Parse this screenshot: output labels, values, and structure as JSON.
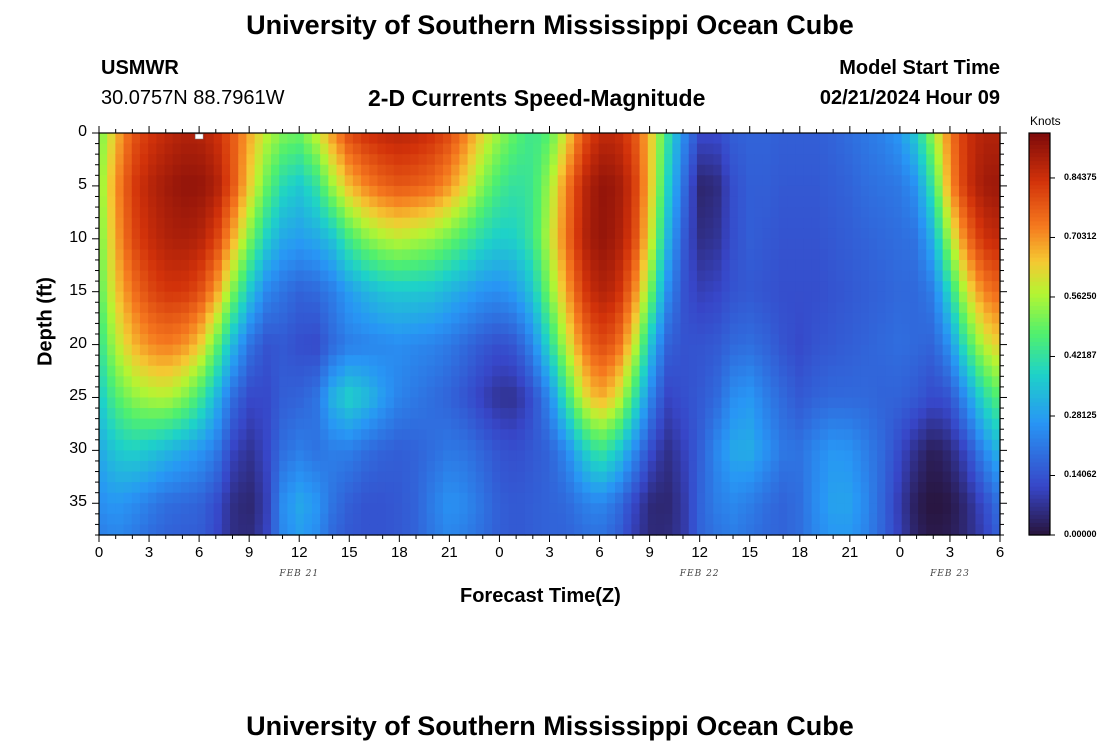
{
  "page": {
    "title": "University of Southern Mississippi Ocean Cube",
    "footer_title": "University of Southern Mississippi Ocean Cube",
    "station_id": "USMWR",
    "station_coords": "30.0757N  88.7961W",
    "subtitle": "2-D Currents Speed-Magnitude",
    "model_start_label": "Model Start Time",
    "model_start_value": "02/21/2024 Hour 09"
  },
  "chart_data": {
    "type": "heatmap",
    "title": "2-D Currents Speed-Magnitude",
    "xlabel": "Forecast Time(Z)",
    "ylabel": "Depth (ft)",
    "x_tick_labels": [
      "0",
      "3",
      "6",
      "9",
      "12",
      "15",
      "18",
      "21",
      "0",
      "3",
      "6",
      "9",
      "12",
      "15",
      "18",
      "21",
      "0",
      "3",
      "6"
    ],
    "x_hours": [
      0,
      3,
      6,
      9,
      12,
      15,
      18,
      21,
      24,
      27,
      30,
      33,
      36,
      39,
      42,
      45,
      48,
      51,
      54
    ],
    "date_labels": [
      {
        "label": "FEB 21",
        "hour": 12
      },
      {
        "label": "FEB 22",
        "hour": 36
      },
      {
        "label": "FEB 23",
        "hour": 51
      }
    ],
    "y_tick_labels": [
      "0",
      "5",
      "10",
      "15",
      "20",
      "25",
      "30",
      "35"
    ],
    "y_ticks": [
      0,
      5,
      10,
      15,
      20,
      25,
      30,
      35
    ],
    "xlim": [
      0,
      54
    ],
    "ylim": [
      0,
      38
    ],
    "colorbar": {
      "units": "Knots",
      "min": 0.0,
      "max": 0.95,
      "ticks": [
        0.0,
        0.14062,
        0.28125,
        0.42187,
        0.5625,
        0.70312,
        0.84375
      ],
      "tick_labels": [
        "0.00000",
        "0.14062",
        "0.28125",
        "0.42187",
        "0.56250",
        "0.70312",
        "0.84375"
      ]
    },
    "x_hours_sampled": [
      0,
      1,
      2,
      3,
      4,
      5,
      6,
      7,
      8,
      9,
      10,
      11,
      12,
      13,
      14,
      15,
      16,
      17,
      18,
      19,
      20,
      21,
      22,
      23,
      24,
      25,
      26,
      27,
      28,
      29,
      30,
      31,
      32,
      33,
      34,
      35,
      36,
      37,
      38,
      39,
      40,
      41,
      42,
      43,
      44,
      45,
      46,
      47,
      48,
      49,
      50,
      51,
      52,
      53,
      54
    ],
    "depths_sampled": [
      0,
      5,
      10,
      15,
      20,
      25,
      30,
      35,
      38
    ],
    "speed_knots": [
      [
        0.5,
        0.52,
        0.5,
        0.47,
        0.42,
        0.36,
        0.3,
        0.25,
        0.22
      ],
      [
        0.66,
        0.7,
        0.68,
        0.64,
        0.57,
        0.47,
        0.36,
        0.27,
        0.24
      ],
      [
        0.78,
        0.82,
        0.8,
        0.74,
        0.66,
        0.53,
        0.38,
        0.25,
        0.22
      ],
      [
        0.83,
        0.87,
        0.85,
        0.8,
        0.71,
        0.56,
        0.36,
        0.22,
        0.19
      ],
      [
        0.86,
        0.9,
        0.88,
        0.83,
        0.73,
        0.57,
        0.33,
        0.19,
        0.17
      ],
      [
        0.88,
        0.92,
        0.89,
        0.83,
        0.71,
        0.53,
        0.3,
        0.18,
        0.16
      ],
      [
        0.88,
        0.92,
        0.88,
        0.8,
        0.65,
        0.45,
        0.27,
        0.17,
        0.16
      ],
      [
        0.85,
        0.89,
        0.82,
        0.7,
        0.5,
        0.33,
        0.22,
        0.13,
        0.12
      ],
      [
        0.78,
        0.79,
        0.68,
        0.52,
        0.33,
        0.19,
        0.11,
        0.06,
        0.06
      ],
      [
        0.68,
        0.64,
        0.52,
        0.36,
        0.2,
        0.12,
        0.07,
        0.04,
        0.05
      ],
      [
        0.58,
        0.5,
        0.38,
        0.24,
        0.14,
        0.12,
        0.11,
        0.09,
        0.1
      ],
      [
        0.52,
        0.4,
        0.3,
        0.2,
        0.15,
        0.16,
        0.19,
        0.25,
        0.24
      ],
      [
        0.5,
        0.36,
        0.28,
        0.17,
        0.13,
        0.17,
        0.22,
        0.3,
        0.28
      ],
      [
        0.58,
        0.42,
        0.3,
        0.18,
        0.12,
        0.2,
        0.2,
        0.27,
        0.25
      ],
      [
        0.7,
        0.55,
        0.35,
        0.22,
        0.18,
        0.32,
        0.22,
        0.2,
        0.18
      ],
      [
        0.8,
        0.66,
        0.45,
        0.28,
        0.22,
        0.38,
        0.22,
        0.16,
        0.15
      ],
      [
        0.84,
        0.72,
        0.52,
        0.32,
        0.23,
        0.34,
        0.19,
        0.14,
        0.14
      ],
      [
        0.86,
        0.76,
        0.56,
        0.35,
        0.24,
        0.28,
        0.17,
        0.14,
        0.14
      ],
      [
        0.87,
        0.78,
        0.58,
        0.36,
        0.25,
        0.23,
        0.16,
        0.15,
        0.15
      ],
      [
        0.86,
        0.77,
        0.56,
        0.36,
        0.24,
        0.21,
        0.17,
        0.17,
        0.17
      ],
      [
        0.84,
        0.75,
        0.54,
        0.35,
        0.23,
        0.19,
        0.19,
        0.22,
        0.21
      ],
      [
        0.8,
        0.7,
        0.5,
        0.32,
        0.21,
        0.17,
        0.21,
        0.26,
        0.24
      ],
      [
        0.72,
        0.62,
        0.45,
        0.29,
        0.18,
        0.14,
        0.2,
        0.24,
        0.22
      ],
      [
        0.62,
        0.52,
        0.4,
        0.26,
        0.15,
        0.1,
        0.17,
        0.2,
        0.19
      ],
      [
        0.54,
        0.45,
        0.37,
        0.25,
        0.13,
        0.07,
        0.14,
        0.16,
        0.16
      ],
      [
        0.48,
        0.42,
        0.38,
        0.28,
        0.15,
        0.07,
        0.13,
        0.15,
        0.15
      ],
      [
        0.44,
        0.44,
        0.44,
        0.36,
        0.24,
        0.13,
        0.15,
        0.16,
        0.16
      ],
      [
        0.48,
        0.55,
        0.58,
        0.52,
        0.4,
        0.24,
        0.17,
        0.17,
        0.17
      ],
      [
        0.62,
        0.72,
        0.74,
        0.68,
        0.58,
        0.43,
        0.24,
        0.18,
        0.17
      ],
      [
        0.78,
        0.86,
        0.87,
        0.82,
        0.73,
        0.6,
        0.36,
        0.22,
        0.19
      ],
      [
        0.86,
        0.92,
        0.92,
        0.88,
        0.8,
        0.68,
        0.44,
        0.24,
        0.2
      ],
      [
        0.86,
        0.91,
        0.9,
        0.86,
        0.77,
        0.62,
        0.38,
        0.2,
        0.17
      ],
      [
        0.8,
        0.84,
        0.82,
        0.74,
        0.62,
        0.45,
        0.26,
        0.12,
        0.1
      ],
      [
        0.66,
        0.66,
        0.62,
        0.52,
        0.36,
        0.24,
        0.13,
        0.05,
        0.05
      ],
      [
        0.44,
        0.4,
        0.34,
        0.26,
        0.17,
        0.11,
        0.06,
        0.04,
        0.05
      ],
      [
        0.25,
        0.2,
        0.16,
        0.14,
        0.14,
        0.13,
        0.1,
        0.08,
        0.08
      ],
      [
        0.12,
        0.04,
        0.06,
        0.1,
        0.14,
        0.15,
        0.16,
        0.17,
        0.17
      ],
      [
        0.12,
        0.05,
        0.07,
        0.11,
        0.15,
        0.18,
        0.24,
        0.22,
        0.2
      ],
      [
        0.16,
        0.13,
        0.13,
        0.14,
        0.18,
        0.25,
        0.3,
        0.24,
        0.22
      ],
      [
        0.17,
        0.16,
        0.16,
        0.15,
        0.19,
        0.27,
        0.31,
        0.22,
        0.2
      ],
      [
        0.17,
        0.16,
        0.15,
        0.14,
        0.17,
        0.22,
        0.26,
        0.19,
        0.18
      ],
      [
        0.16,
        0.15,
        0.14,
        0.13,
        0.14,
        0.18,
        0.21,
        0.17,
        0.17
      ],
      [
        0.16,
        0.15,
        0.14,
        0.13,
        0.12,
        0.15,
        0.2,
        0.19,
        0.19
      ],
      [
        0.16,
        0.15,
        0.14,
        0.13,
        0.14,
        0.17,
        0.24,
        0.25,
        0.24
      ],
      [
        0.17,
        0.16,
        0.15,
        0.14,
        0.15,
        0.18,
        0.27,
        0.29,
        0.27
      ],
      [
        0.19,
        0.17,
        0.16,
        0.15,
        0.16,
        0.18,
        0.26,
        0.29,
        0.27
      ],
      [
        0.21,
        0.19,
        0.17,
        0.16,
        0.17,
        0.18,
        0.22,
        0.24,
        0.23
      ],
      [
        0.23,
        0.2,
        0.18,
        0.17,
        0.18,
        0.17,
        0.18,
        0.17,
        0.17
      ],
      [
        0.27,
        0.21,
        0.19,
        0.18,
        0.19,
        0.17,
        0.12,
        0.09,
        0.1
      ],
      [
        0.37,
        0.26,
        0.2,
        0.18,
        0.18,
        0.15,
        0.06,
        0.02,
        0.03
      ],
      [
        0.55,
        0.44,
        0.32,
        0.22,
        0.17,
        0.12,
        0.02,
        0.0,
        0.01
      ],
      [
        0.73,
        0.7,
        0.56,
        0.4,
        0.26,
        0.14,
        0.05,
        0.01,
        0.02
      ],
      [
        0.84,
        0.84,
        0.74,
        0.6,
        0.44,
        0.26,
        0.12,
        0.05,
        0.05
      ],
      [
        0.88,
        0.9,
        0.84,
        0.72,
        0.58,
        0.4,
        0.24,
        0.12,
        0.1
      ],
      [
        0.88,
        0.91,
        0.86,
        0.76,
        0.64,
        0.48,
        0.33,
        0.2,
        0.17
      ]
    ]
  }
}
